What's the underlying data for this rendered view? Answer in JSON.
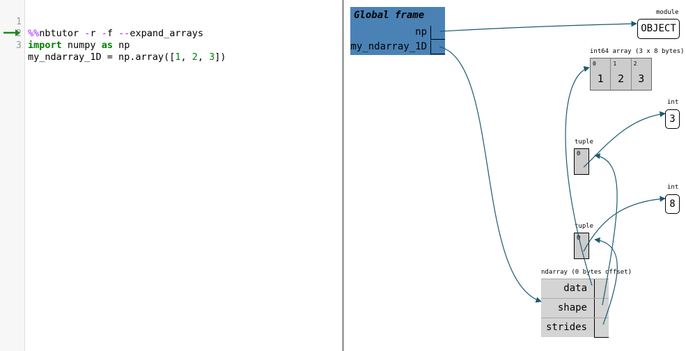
{
  "code": {
    "lines": [
      {
        "num": "1",
        "parts": [
          {
            "t": "%%",
            "c": "magic"
          },
          {
            "t": "nbtutor ",
            "c": ""
          },
          {
            "t": "-",
            "c": "magic"
          },
          {
            "t": "r ",
            "c": ""
          },
          {
            "t": "-",
            "c": "magic"
          },
          {
            "t": "f ",
            "c": ""
          },
          {
            "t": "--",
            "c": "magic"
          },
          {
            "t": "expand_arrays",
            "c": ""
          }
        ]
      },
      {
        "num": "2",
        "parts": [
          {
            "t": "import",
            "c": "kw"
          },
          {
            "t": " numpy ",
            "c": ""
          },
          {
            "t": "as",
            "c": "kw"
          },
          {
            "t": " np",
            "c": ""
          }
        ]
      },
      {
        "num": "3",
        "parts": [
          {
            "t": "my_ndarray_1D = np.array([",
            "c": ""
          },
          {
            "t": "1",
            "c": "num"
          },
          {
            "t": ", ",
            "c": ""
          },
          {
            "t": "2",
            "c": "num"
          },
          {
            "t": ", ",
            "c": ""
          },
          {
            "t": "3",
            "c": "num"
          },
          {
            "t": "])",
            "c": ""
          }
        ]
      }
    ],
    "current_line": "3"
  },
  "colors": {
    "frame": "#4a82b6",
    "arrow": "#1a5a72",
    "current_line_arrow": "#1a8a1a"
  },
  "frame": {
    "title": "Global frame",
    "vars": [
      "np",
      "my_ndarray_1D"
    ]
  },
  "objects": {
    "module": {
      "type_label": "module",
      "value": "OBJECT"
    },
    "array": {
      "type_label": "int64 array (3 x 8 bytes)",
      "indices": [
        "0",
        "1",
        "2"
      ],
      "values": [
        "1",
        "2",
        "3"
      ]
    },
    "int_a": {
      "type_label": "int",
      "value": "3"
    },
    "tuple_a": {
      "type_label": "tuple",
      "index": "0"
    },
    "int_b": {
      "type_label": "int",
      "value": "8"
    },
    "tuple_b": {
      "type_label": "tuple",
      "index": "0"
    },
    "ndarray": {
      "type_label": "ndarray (0 bytes offset)",
      "fields": [
        "data",
        "shape",
        "strides"
      ]
    }
  }
}
